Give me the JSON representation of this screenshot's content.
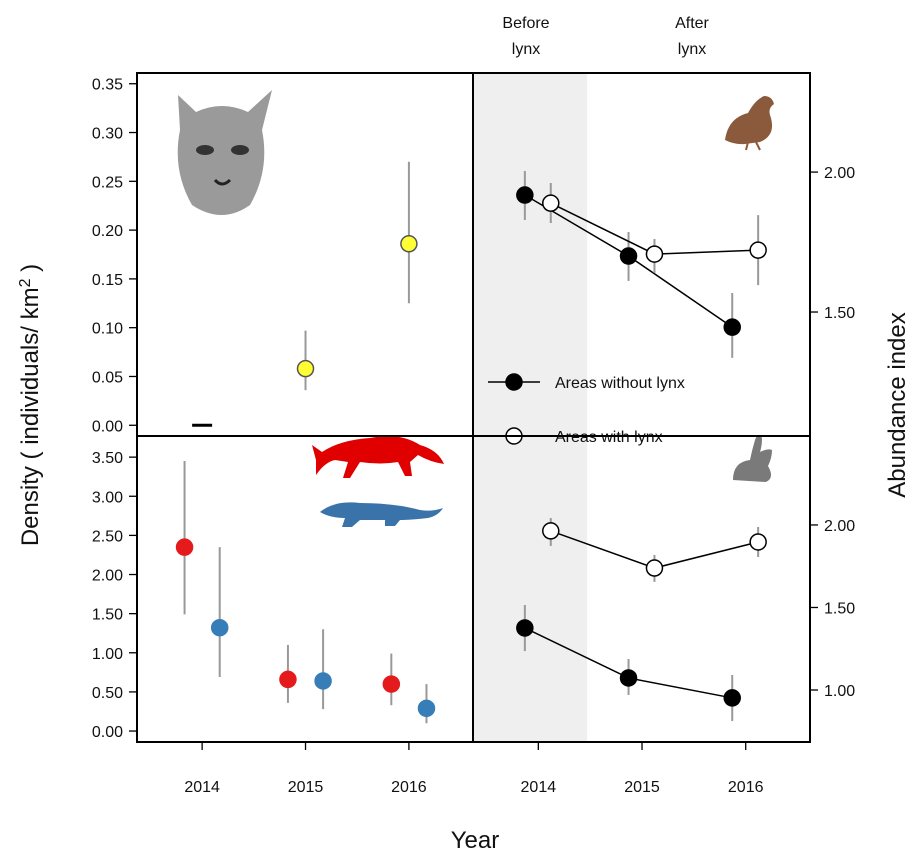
{
  "chart_data": [
    {
      "type": "scatter",
      "xlim": [
        2013.37,
        2016.62
      ],
      "ylim": [
        -0.011,
        0.361
      ],
      "yaxis": "left",
      "yticks": [
        {
          "value": 0,
          "label": "0.00"
        },
        {
          "value": 0.05,
          "label": "0.05"
        },
        {
          "value": 0.1,
          "label": "0.10"
        },
        {
          "value": 0.15,
          "label": "0.15"
        },
        {
          "value": 0.2,
          "label": "0.20"
        },
        {
          "value": 0.25,
          "label": "0.25"
        },
        {
          "value": 0.3,
          "label": "0.30"
        },
        {
          "value": 0.35,
          "label": "0.35"
        }
      ],
      "series": [
        {
          "color": "#ffff33",
          "stroke": "#555555",
          "x": [
            2014,
            2015,
            2016
          ],
          "values": [
            0,
            0.058,
            0.186
          ],
          "lower": [
            null,
            0.036,
            0.125
          ],
          "upper": [
            null,
            0.097,
            0.27
          ],
          "markers": [
            "dash",
            "circle",
            "circle"
          ]
        }
      ]
    },
    {
      "type": "scatter",
      "xlim": [
        2013.37,
        2016.62
      ],
      "ylim": [
        -0.14,
        3.77
      ],
      "yaxis": "left",
      "xticks": [
        2014,
        2015,
        2016
      ],
      "yticks": [
        {
          "value": 0,
          "label": "0.00"
        },
        {
          "value": 0.5,
          "label": "0.50"
        },
        {
          "value": 1,
          "label": "1.00"
        },
        {
          "value": 1.5,
          "label": "1.50"
        },
        {
          "value": 2,
          "label": "2.00"
        },
        {
          "value": 2.5,
          "label": "2.50"
        },
        {
          "value": 3,
          "label": "3.00"
        },
        {
          "value": 3.5,
          "label": "3.50"
        }
      ],
      "series": [
        {
          "color": "#e41a1c",
          "stroke": "#e41a1c",
          "x": [
            2013.83,
            2014.83,
            2015.83
          ],
          "values": [
            2.35,
            0.66,
            0.6
          ],
          "lower": [
            1.49,
            0.36,
            0.33
          ],
          "upper": [
            3.45,
            1.1,
            0.99
          ]
        },
        {
          "color": "#377eb8",
          "stroke": "#377eb8",
          "x": [
            2014.17,
            2015.17,
            2016.17
          ],
          "values": [
            1.32,
            0.64,
            0.29
          ],
          "lower": [
            0.69,
            0.28,
            0.1
          ],
          "upper": [
            2.35,
            1.3,
            0.6
          ]
        }
      ]
    },
    {
      "type": "line",
      "xlim": [
        2013.37,
        2016.62
      ],
      "ylim": [
        1.057,
        2.354
      ],
      "yaxis": "right",
      "shade_x": [
        2013.37,
        2014.47
      ],
      "yticks": [
        {
          "value": 1.5,
          "label": "1.50"
        },
        {
          "value": 2,
          "label": "2.00"
        }
      ],
      "series": [
        {
          "name": "Areas without lynx",
          "color": "#000000",
          "stroke": "#000000",
          "x": [
            2013.87,
            2014.87,
            2015.87
          ],
          "values": [
            1.918,
            1.7,
            1.446
          ],
          "lower": [
            1.829,
            1.611,
            1.336
          ],
          "upper": [
            2.004,
            1.786,
            1.568
          ]
        },
        {
          "name": "Areas with lynx",
          "color": "#ffffff",
          "stroke": "#000000",
          "x": [
            2014.12,
            2015.12,
            2016.12
          ],
          "values": [
            1.889,
            1.707,
            1.721
          ],
          "lower": [
            1.818,
            1.639,
            1.596
          ],
          "upper": [
            1.961,
            1.761,
            1.846
          ]
        }
      ]
    },
    {
      "type": "line",
      "xlim": [
        2013.37,
        2016.62
      ],
      "ylim": [
        0.685,
        2.539
      ],
      "yaxis": "right",
      "shade_x": [
        2013.37,
        2014.47
      ],
      "xticks": [
        2014,
        2015,
        2016
      ],
      "yticks": [
        {
          "value": 1,
          "label": "1.00"
        },
        {
          "value": 1.5,
          "label": "1.50"
        },
        {
          "value": 2,
          "label": "2.00"
        }
      ],
      "series": [
        {
          "color": "#000000",
          "stroke": "#000000",
          "x": [
            2013.87,
            2014.87,
            2015.87
          ],
          "values": [
            1.376,
            1.073,
            0.952
          ],
          "lower": [
            1.236,
            0.97,
            0.812
          ],
          "upper": [
            1.515,
            1.188,
            1.091
          ]
        },
        {
          "color": "#ffffff",
          "stroke": "#000000",
          "x": [
            2014.12,
            2015.12,
            2016.12
          ],
          "values": [
            1.964,
            1.739,
            1.897
          ],
          "lower": [
            1.873,
            1.655,
            1.806
          ],
          "upper": [
            2.042,
            1.818,
            1.988
          ]
        }
      ]
    }
  ],
  "figure": {
    "xlabel": "Year",
    "ylabel": "Density ( individuals/ km",
    "ylabel_sup": "2",
    "ylabel_end": " )",
    "y2label": "Abundance index",
    "before": [
      "Before",
      "lynx"
    ],
    "after": [
      "After",
      "lynx"
    ]
  }
}
